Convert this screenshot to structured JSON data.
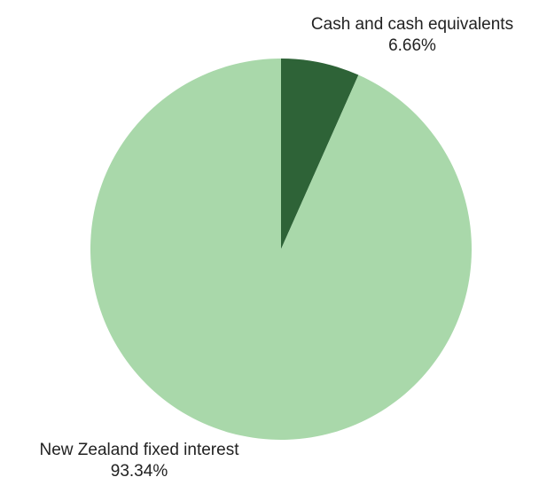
{
  "chart_data": {
    "type": "pie",
    "title": "",
    "slices": [
      {
        "label": "Cash and cash equivalents",
        "value": 6.66,
        "value_label": "6.66%",
        "color": "#2e6337"
      },
      {
        "label": "New Zealand fixed interest",
        "value": 93.34,
        "value_label": "93.34%",
        "color": "#a9d8aa"
      }
    ],
    "start_angle": "12 o'clock",
    "direction": "clockwise",
    "legend": "none"
  }
}
